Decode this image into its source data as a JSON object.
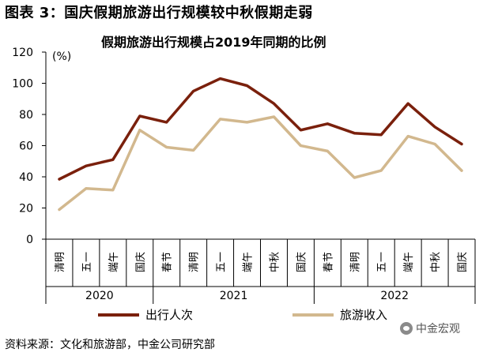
{
  "figure_title": "图表 3：国庆假期旅游出行规模较中秋假期走弱",
  "source_note": "资料来源：文化和旅游部，中金公司研究部",
  "watermark": "中金宏观",
  "chart_data": {
    "type": "line",
    "title": "假期旅游出行规模占2019年同期的比例",
    "ylabel": "(%)",
    "ylim": [
      0,
      120
    ],
    "yticks": [
      0,
      20,
      40,
      60,
      80,
      100,
      120
    ],
    "categories": [
      "清明",
      "五一",
      "端午",
      "国庆",
      "春节",
      "清明",
      "五一",
      "端午",
      "中秋",
      "国庆",
      "春节",
      "清明",
      "五一",
      "端午",
      "中秋",
      "国庆"
    ],
    "year_groups": [
      {
        "label": "2020",
        "count": 4
      },
      {
        "label": "2021",
        "count": 6
      },
      {
        "label": "2022",
        "count": 6
      }
    ],
    "series": [
      {
        "name": "出行人次",
        "color": "#7a200c",
        "values": [
          38.5,
          47,
          51,
          79,
          75,
          95,
          103,
          98.5,
          87,
          70,
          74,
          68,
          67,
          87,
          72,
          61
        ]
      },
      {
        "name": "旅游收入",
        "color": "#d2b88e",
        "values": [
          19,
          32.5,
          31.5,
          70,
          59,
          57,
          77,
          75,
          78.5,
          60,
          56.5,
          39.5,
          44,
          66,
          61,
          44
        ]
      }
    ],
    "legend_position": "bottom"
  }
}
